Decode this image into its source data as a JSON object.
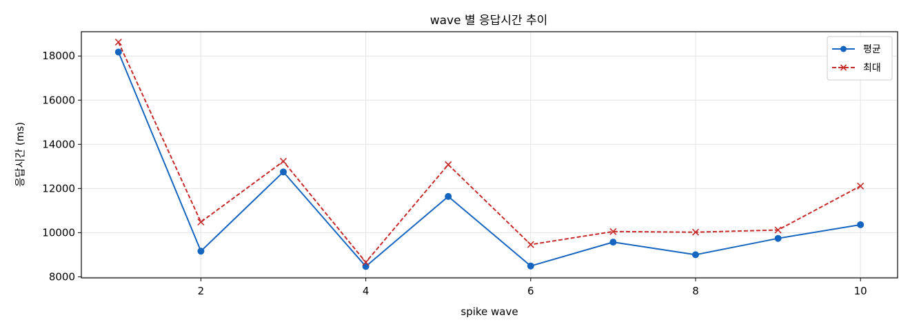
{
  "chart_data": {
    "type": "line",
    "title": "wave 별 응답시간 추이",
    "xlabel": "spike wave",
    "ylabel": "응답시간 (ms)",
    "x": [
      1,
      2,
      3,
      4,
      5,
      6,
      7,
      8,
      9,
      10
    ],
    "xlim": [
      0.55,
      10.45
    ],
    "ylim": [
      7950,
      19100
    ],
    "xticks": [
      2,
      4,
      6,
      8,
      10
    ],
    "yticks": [
      8000,
      10000,
      12000,
      14000,
      16000,
      18000
    ],
    "grid": true,
    "legend_position": "top-right",
    "series": [
      {
        "name": "평균",
        "values": [
          18180,
          9160,
          12750,
          8470,
          11640,
          8490,
          9570,
          9000,
          9740,
          10360
        ],
        "color": "#1565c0",
        "line_style": "solid",
        "marker": "circle"
      },
      {
        "name": "최대",
        "values": [
          18630,
          10480,
          13230,
          8660,
          13080,
          9460,
          10050,
          10020,
          10120,
          12110
        ],
        "color": "#c62828",
        "line_style": "dashed",
        "marker": "x"
      }
    ]
  }
}
